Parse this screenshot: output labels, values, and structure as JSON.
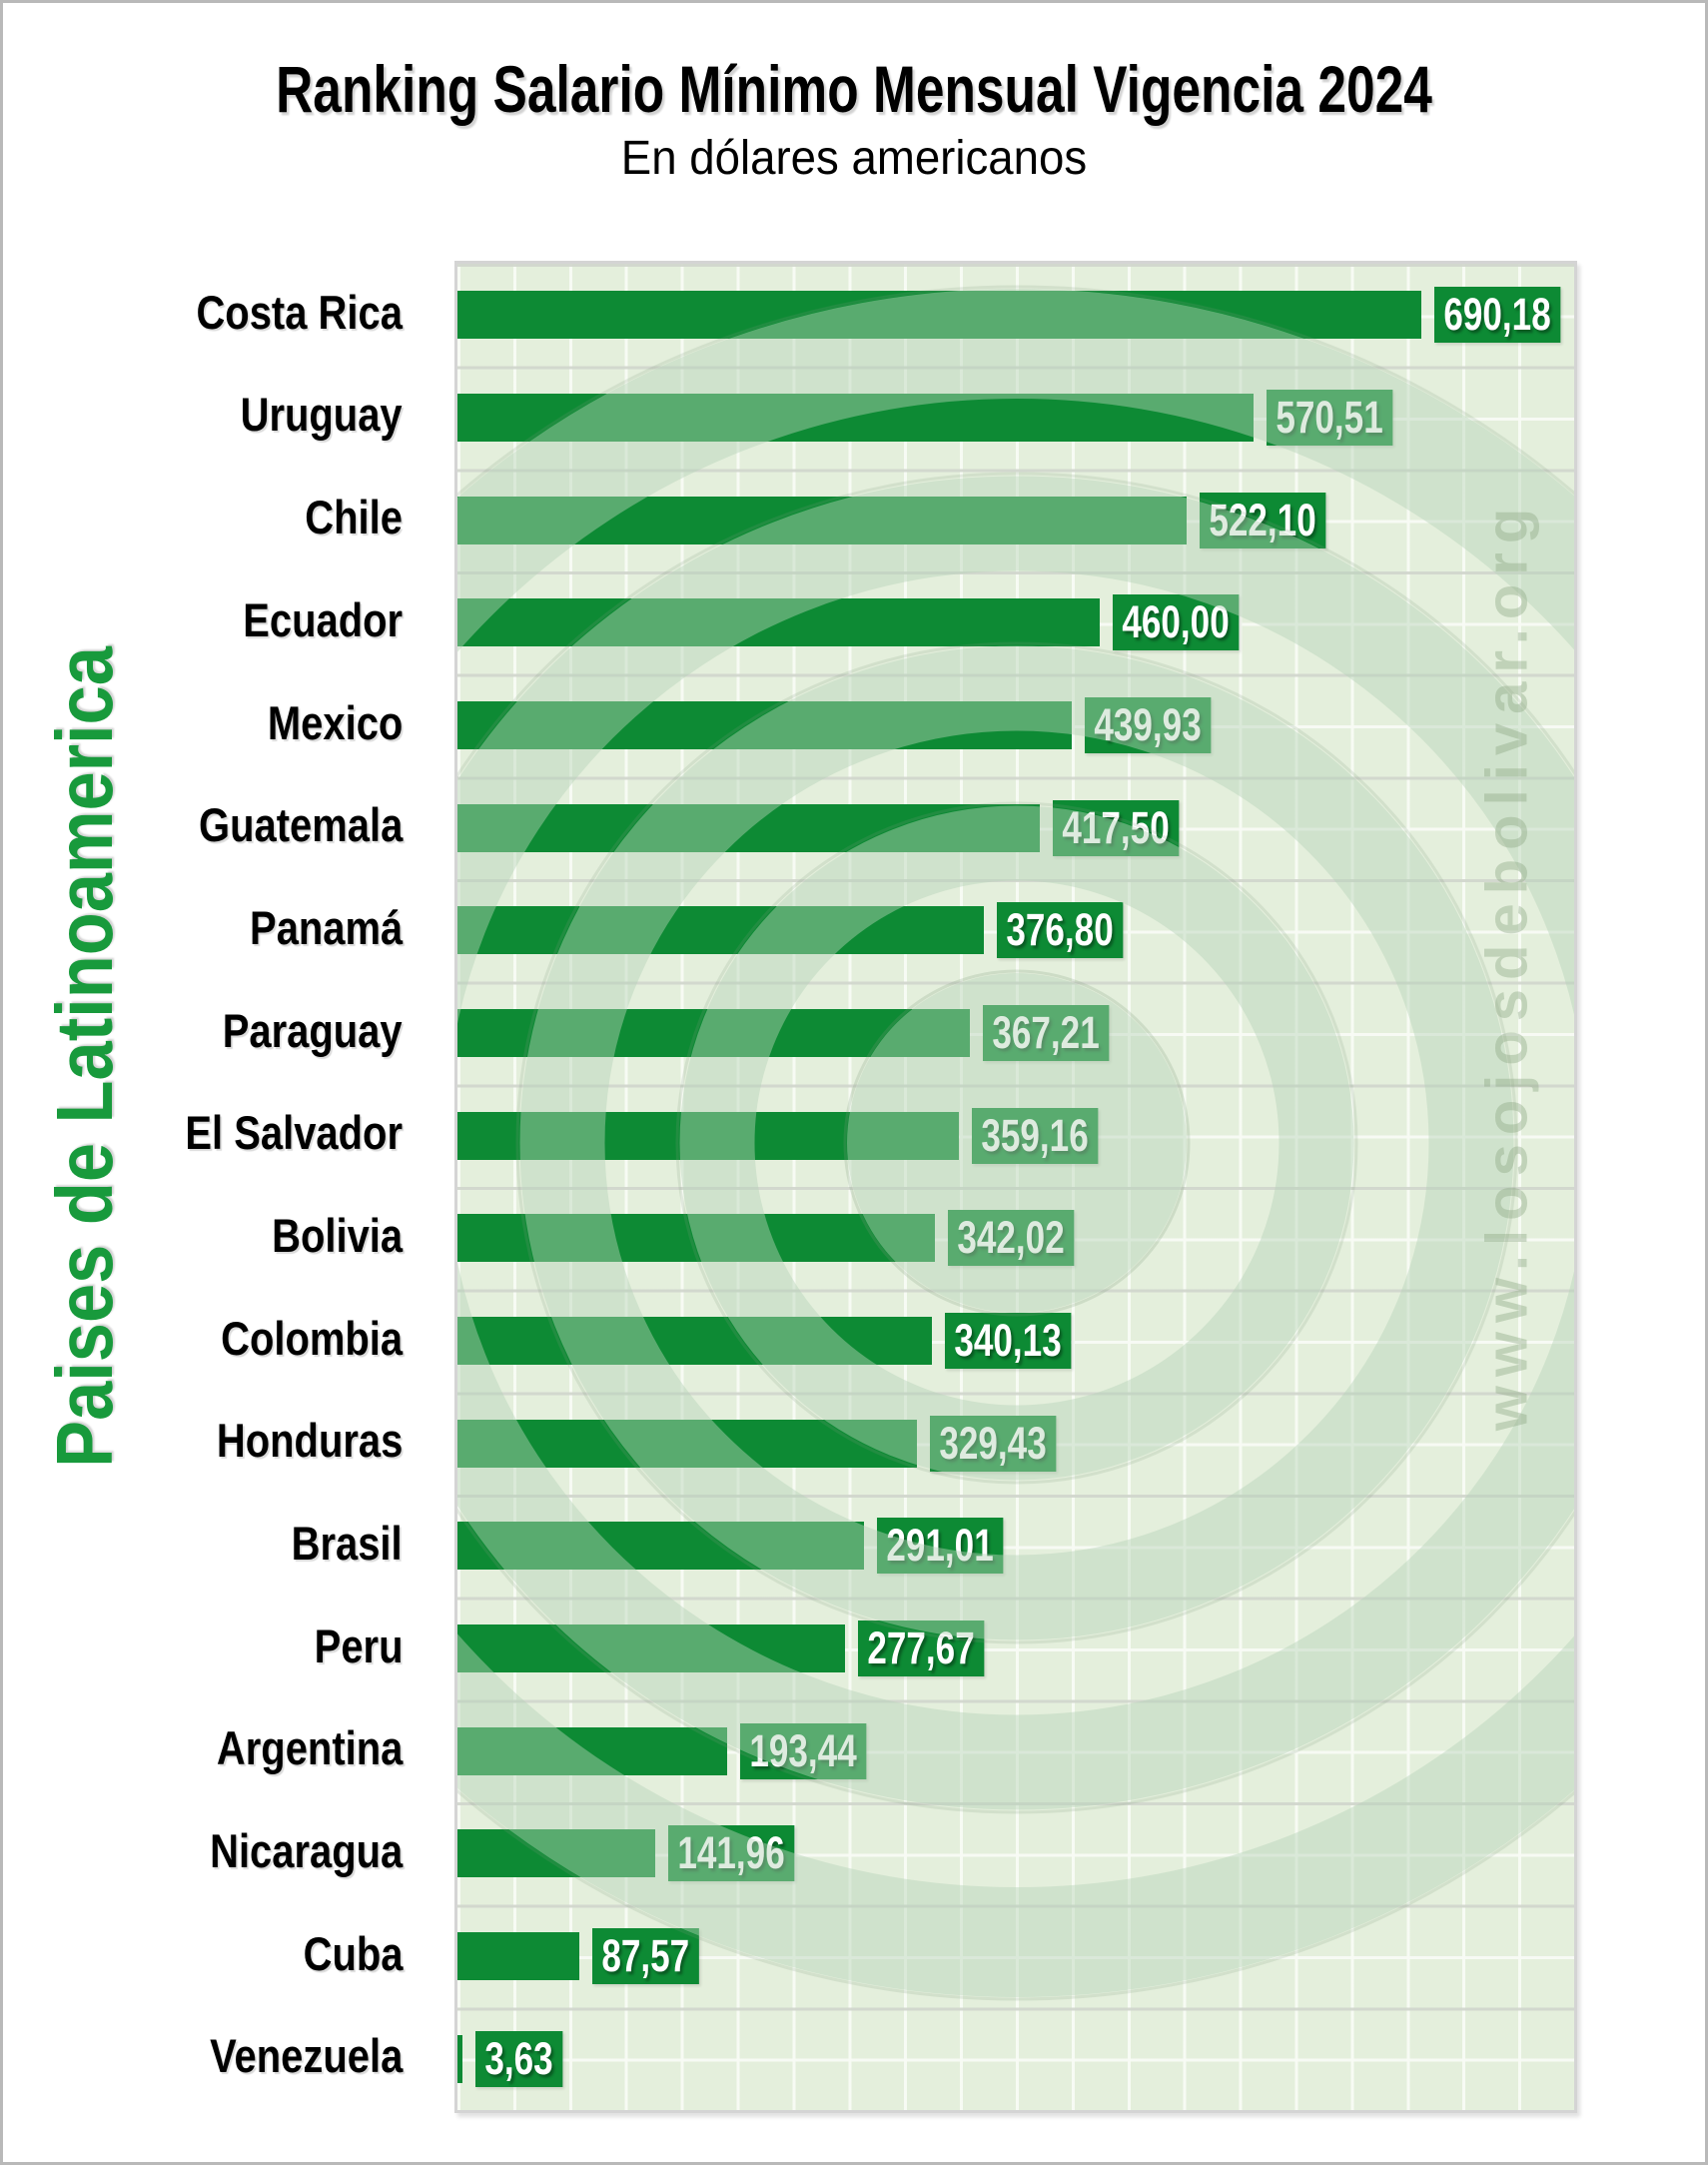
{
  "page": {
    "watermark_url": "www.losojosdebolivar.org"
  },
  "chart_data": {
    "type": "bar",
    "orientation": "horizontal",
    "title": "Ranking Salario Mínimo Mensual Vigencia 2024",
    "subtitle": "En dólares americanos",
    "xlabel": "",
    "ylabel": "Paises de Latinoamerica",
    "xlim": [
      0,
      800
    ],
    "grid": true,
    "legend": false,
    "categories": [
      "Costa Rica",
      "Uruguay",
      "Chile",
      "Ecuador",
      "Mexico",
      "Guatemala",
      "Panamá",
      "Paraguay",
      "El Salvador",
      "Bolivia",
      "Colombia",
      "Honduras",
      "Brasil",
      "Peru",
      "Argentina",
      "Nicaragua",
      "Cuba",
      "Venezuela"
    ],
    "values": [
      690.18,
      570.51,
      522.1,
      460.0,
      439.93,
      417.5,
      376.8,
      367.21,
      359.16,
      342.02,
      340.13,
      329.43,
      291.01,
      277.67,
      193.44,
      141.96,
      87.57,
      3.63
    ],
    "value_labels": [
      "690,18",
      "570,51",
      "522,10",
      "460,00",
      "439,93",
      "417,50",
      "376,80",
      "367,21",
      "359,16",
      "342,02",
      "340,13",
      "329,43",
      "291,01",
      "277,67",
      "193,44",
      "141,96",
      "87,57",
      "3,63"
    ],
    "colors": {
      "bar": "#0d8a34",
      "value_box": "#0d8a34",
      "value_text": "#ffffff",
      "plot_background": "#e4efdc",
      "category_text": "#000000",
      "axis_title": "#189a3c",
      "watermark_overlay": "rgba(182,210,184,0.45)"
    }
  }
}
